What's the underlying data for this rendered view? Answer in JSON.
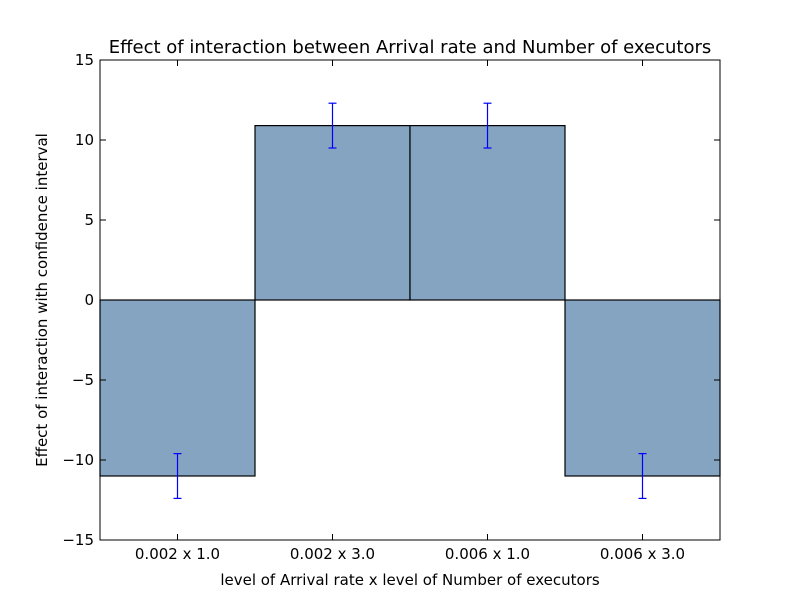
{
  "chart_data": {
    "type": "bar",
    "title": "Effect of interaction between Arrival rate and Number of executors",
    "xlabel": "level of Arrival rate x level of Number of executors",
    "ylabel": "Effect of interaction with confidence interval",
    "categories": [
      "0.002 x 1.0",
      "0.002 x 3.0",
      "0.006 x 1.0",
      "0.006 x 3.0"
    ],
    "values": [
      -11.0,
      10.9,
      10.9,
      -11.0
    ],
    "error": [
      1.4,
      1.4,
      1.4,
      1.4
    ],
    "ylim": [
      -15,
      15
    ],
    "yticks": [
      -15,
      -10,
      -5,
      0,
      5,
      10,
      15
    ],
    "ytick_labels": [
      "−15",
      "−10",
      "−5",
      "0",
      "5",
      "10",
      "15"
    ],
    "grid": false,
    "colors": {
      "bar": "#84a4c2",
      "error": "#0000ff",
      "edge": "#000000"
    }
  }
}
